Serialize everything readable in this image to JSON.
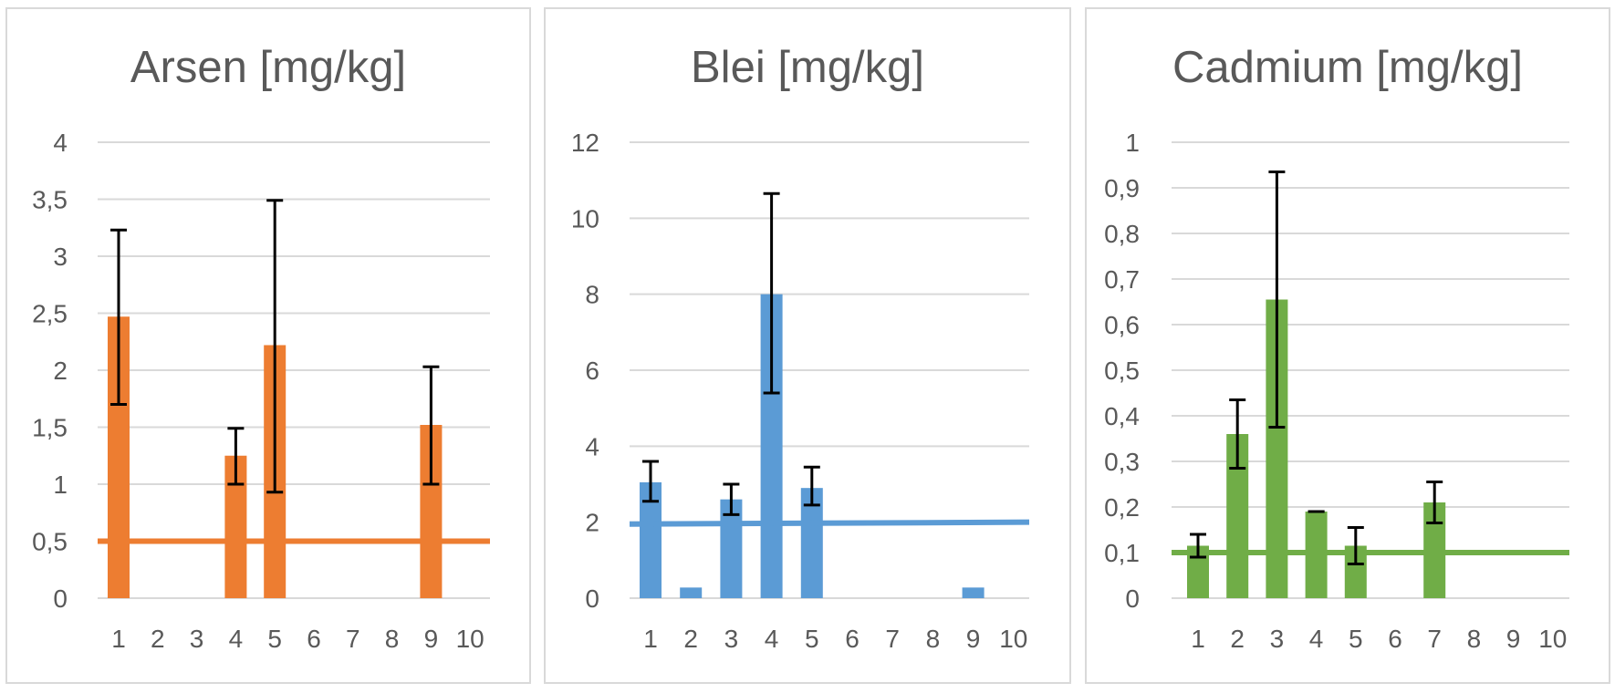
{
  "chart_data": [
    {
      "type": "bar",
      "title": "Arsen [mg/kg]",
      "xlabel": "",
      "ylabel": "",
      "categories": [
        "1",
        "2",
        "3",
        "4",
        "5",
        "6",
        "7",
        "8",
        "9",
        "10"
      ],
      "values": [
        2.47,
        null,
        null,
        1.25,
        2.22,
        null,
        null,
        null,
        1.52,
        null
      ],
      "error_low": [
        1.7,
        null,
        null,
        1.0,
        0.93,
        null,
        null,
        null,
        1.0,
        null
      ],
      "error_high": [
        3.23,
        null,
        null,
        1.49,
        3.49,
        null,
        null,
        null,
        2.03,
        null
      ],
      "y_ticks": [
        "0",
        "0,5",
        "1",
        "1,5",
        "2",
        "2,5",
        "3",
        "3,5",
        "4"
      ],
      "y_tick_values": [
        0,
        0.5,
        1,
        1.5,
        2,
        2.5,
        3,
        3.5,
        4
      ],
      "ylim": [
        0,
        4
      ],
      "reference_line": {
        "start": 0.5,
        "end": 0.5
      },
      "color": "#ED7D31",
      "grid": true
    },
    {
      "type": "bar",
      "title": "Blei [mg/kg]",
      "xlabel": "",
      "ylabel": "",
      "categories": [
        "1",
        "2",
        "3",
        "4",
        "5",
        "6",
        "7",
        "8",
        "9",
        "10"
      ],
      "values": [
        3.05,
        0.28,
        2.6,
        8.0,
        2.9,
        null,
        null,
        null,
        0.28,
        null
      ],
      "error_low": [
        2.55,
        null,
        2.2,
        5.4,
        2.45,
        null,
        null,
        null,
        null,
        null
      ],
      "error_high": [
        3.6,
        null,
        3.0,
        10.65,
        3.45,
        null,
        null,
        null,
        null,
        null
      ],
      "y_ticks": [
        "0",
        "2",
        "4",
        "6",
        "8",
        "10",
        "12"
      ],
      "y_tick_values": [
        0,
        2,
        4,
        6,
        8,
        10,
        12
      ],
      "ylim": [
        0,
        12
      ],
      "reference_line": {
        "start": 1.95,
        "end": 2.0
      },
      "color": "#5B9BD5",
      "grid": true
    },
    {
      "type": "bar",
      "title": "Cadmium [mg/kg]",
      "xlabel": "",
      "ylabel": "",
      "categories": [
        "1",
        "2",
        "3",
        "4",
        "5",
        "6",
        "7",
        "8",
        "9",
        "10"
      ],
      "values": [
        0.115,
        0.36,
        0.655,
        0.19,
        0.115,
        null,
        0.21,
        null,
        null,
        null
      ],
      "error_low": [
        0.09,
        0.285,
        0.375,
        0.19,
        0.075,
        null,
        0.165,
        null,
        null,
        null
      ],
      "error_high": [
        0.14,
        0.435,
        0.935,
        0.19,
        0.155,
        null,
        0.255,
        null,
        null,
        null
      ],
      "y_ticks": [
        "0",
        "0,1",
        "0,2",
        "0,3",
        "0,4",
        "0,5",
        "0,6",
        "0,7",
        "0,8",
        "0,9",
        "1"
      ],
      "y_tick_values": [
        0,
        0.1,
        0.2,
        0.3,
        0.4,
        0.5,
        0.6,
        0.7,
        0.8,
        0.9,
        1
      ],
      "ylim": [
        0,
        1
      ],
      "reference_line": {
        "start": 0.1,
        "end": 0.1
      },
      "color": "#70AD47",
      "grid": true
    }
  ]
}
